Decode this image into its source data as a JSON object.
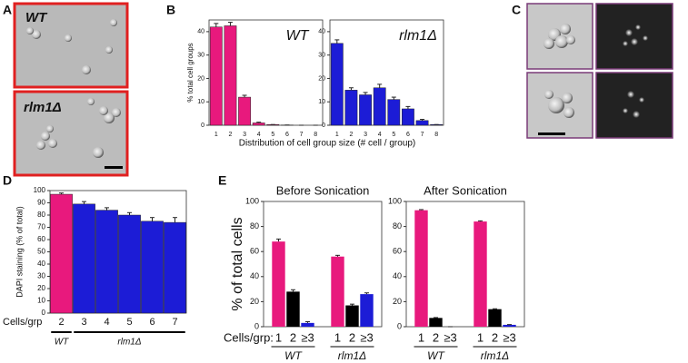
{
  "panel_labels": [
    "A",
    "B",
    "C",
    "D",
    "E"
  ],
  "panel_a": {
    "labels": [
      "WT",
      "rlm1Δ"
    ]
  },
  "chart_data": [
    {
      "type": "bar",
      "title": "WT",
      "ylabel": "% total cell groups",
      "xlabel": "Distribution of cell group size (# cell / group)",
      "categories": [
        "1",
        "2",
        "3",
        "4",
        "5",
        "6",
        "7",
        "8"
      ],
      "values": [
        42,
        42.5,
        12,
        1,
        0.3,
        0.1,
        0,
        0
      ],
      "errors": [
        1.5,
        1.5,
        0.8,
        0.3,
        0,
        0,
        0,
        0
      ],
      "color": "#e8197d",
      "ylim": [
        0,
        45
      ],
      "yticks": [
        0,
        10,
        20,
        30,
        40
      ]
    },
    {
      "type": "bar",
      "title": "rlm1Δ",
      "categories": [
        "1",
        "2",
        "3",
        "4",
        "5",
        "6",
        "7",
        "8"
      ],
      "values": [
        35,
        15,
        13,
        16,
        11,
        7,
        2,
        0.3
      ],
      "errors": [
        1.5,
        1,
        1,
        1.5,
        1,
        1,
        0.5,
        0
      ],
      "color": "#1c1cd6",
      "ylim": [
        0,
        45
      ],
      "yticks": [
        0,
        10,
        20,
        30,
        40
      ]
    },
    {
      "type": "bar",
      "ylabel": "DAPI staining (% of total)",
      "xprefix": "Cells/grp",
      "categories": [
        "2",
        "3",
        "4",
        "5",
        "6",
        "7"
      ],
      "values": [
        97,
        89,
        84,
        80,
        75,
        74
      ],
      "errors": [
        1,
        2,
        2,
        2,
        3,
        4
      ],
      "colors": [
        "#e8197d",
        "#1c1cd6",
        "#1c1cd6",
        "#1c1cd6",
        "#1c1cd6",
        "#1c1cd6"
      ],
      "group_labels": [
        "WT",
        "rlm1Δ"
      ],
      "ylim": [
        0,
        100
      ],
      "yticks": [
        0,
        10,
        20,
        30,
        40,
        50,
        60,
        70,
        80,
        90,
        100
      ]
    },
    {
      "type": "grouped_bar",
      "title": "Before Sonication",
      "ylabel": "% of total cells",
      "xprefix": "Cells/grp:",
      "categories": [
        "WT",
        "rlm1Δ"
      ],
      "series": [
        {
          "name": "1",
          "color": "#e8197d",
          "values": [
            68,
            56
          ],
          "errors": [
            2,
            1
          ]
        },
        {
          "name": "2",
          "color": "#000000",
          "values": [
            28,
            17
          ],
          "errors": [
            1.5,
            1
          ]
        },
        {
          "name": "≥3",
          "color": "#1c1cd6",
          "values": [
            3,
            26
          ],
          "errors": [
            1,
            1
          ]
        }
      ],
      "ylim": [
        0,
        100
      ],
      "yticks": [
        0,
        20,
        40,
        60,
        80,
        100
      ]
    },
    {
      "type": "grouped_bar",
      "title": "After Sonication",
      "categories": [
        "WT",
        "rlm1Δ"
      ],
      "series": [
        {
          "name": "1",
          "color": "#e8197d",
          "values": [
            93,
            84
          ],
          "errors": [
            0.5,
            0.5
          ]
        },
        {
          "name": "2",
          "color": "#000000",
          "values": [
            7,
            14
          ],
          "errors": [
            0.3,
            0.3
          ]
        },
        {
          "name": "≥3",
          "color": "#1c1cd6",
          "values": [
            0,
            1.5
          ],
          "errors": [
            0,
            0.2
          ]
        }
      ],
      "ylim": [
        0,
        100
      ],
      "yticks": [
        0,
        20,
        40,
        60,
        80,
        100
      ]
    }
  ]
}
